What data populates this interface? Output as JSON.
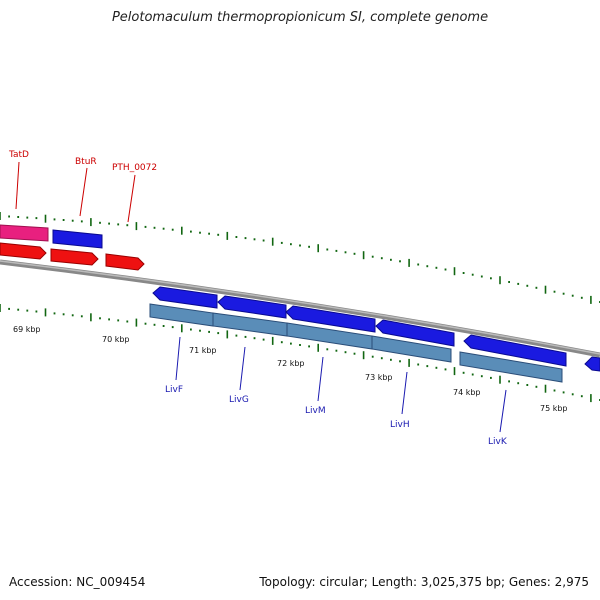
{
  "title": "Pelotomaculum thermopropionicum SI, complete genome",
  "footer": {
    "accession": "Accession: NC_009454",
    "summary": "Topology: circular; Length: 3,025,375 bp; Genes: 2,975"
  },
  "colors": {
    "pink_gene": "#e8207f",
    "red_gene": "#ee1111",
    "blue_gene": "#1a1ae0",
    "steel_gene": "#5a8db8",
    "backbone": "#888888",
    "tick": "#116611",
    "upper_label": "#cc0000",
    "lower_label": "#1a1ab0"
  },
  "kbp_labels": [
    "69 kbp",
    "70 kbp",
    "71 kbp",
    "72 kbp",
    "73 kbp",
    "74 kbp",
    "75 kbp"
  ],
  "upper_genes": [
    {
      "id": "tatd",
      "label": "TatD"
    },
    {
      "id": "btur",
      "label": "BtuR"
    },
    {
      "id": "pth0072",
      "label": "PTH_0072"
    }
  ],
  "lower_genes": [
    {
      "id": "livf",
      "label": "LivF"
    },
    {
      "id": "livg",
      "label": "LivG"
    },
    {
      "id": "livm",
      "label": "LivM"
    },
    {
      "id": "livh",
      "label": "LivH"
    },
    {
      "id": "livk",
      "label": "LivK"
    }
  ]
}
